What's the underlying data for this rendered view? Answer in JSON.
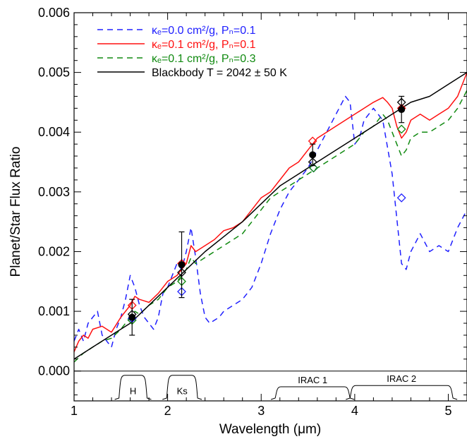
{
  "chart_data": {
    "type": "line",
    "xlabel": "Wavelength (μm)",
    "ylabel": "Planet/Star Flux Ratio",
    "xlim": [
      1.0,
      5.2
    ],
    "ylim": [
      -0.0005,
      0.006
    ],
    "x_ticks": [
      1,
      2,
      3,
      4,
      5
    ],
    "x_tick_labels": [
      "1",
      "2",
      "3",
      "4",
      "5"
    ],
    "y_ticks": [
      0.0,
      0.001,
      0.002,
      0.003,
      0.004,
      0.005,
      0.006
    ],
    "y_tick_labels": [
      "0.000",
      "0.001",
      "0.002",
      "0.003",
      "0.004",
      "0.005",
      "0.006"
    ],
    "grid": false,
    "legend_position": "top-left",
    "series": [
      {
        "name": "κₑ=0.0 cm²/g, Pₙ=0.1",
        "color": "#2020ff",
        "style": "dashed",
        "x": [
          1.0,
          1.05,
          1.1,
          1.15,
          1.2,
          1.25,
          1.3,
          1.35,
          1.4,
          1.45,
          1.5,
          1.55,
          1.6,
          1.65,
          1.7,
          1.75,
          1.8,
          1.85,
          1.9,
          1.95,
          2.0,
          2.05,
          2.1,
          2.15,
          2.2,
          2.25,
          2.3,
          2.35,
          2.4,
          2.45,
          2.5,
          2.55,
          2.6,
          2.7,
          2.8,
          2.9,
          3.0,
          3.1,
          3.2,
          3.3,
          3.4,
          3.5,
          3.6,
          3.7,
          3.8,
          3.9,
          3.95,
          4.0,
          4.05,
          4.1,
          4.2,
          4.3,
          4.4,
          4.5,
          4.55,
          4.6,
          4.7,
          4.8,
          4.9,
          5.0,
          5.1,
          5.2
        ],
        "y": [
          0.0005,
          0.0007,
          0.0005,
          0.0008,
          0.0009,
          0.001,
          0.0006,
          0.0005,
          0.0004,
          0.0007,
          0.0009,
          0.0012,
          0.0016,
          0.0014,
          0.0011,
          0.0009,
          0.0008,
          0.0007,
          0.0009,
          0.0013,
          0.0014,
          0.0016,
          0.0018,
          0.0017,
          0.002,
          0.0024,
          0.0019,
          0.0013,
          0.0009,
          0.0008,
          0.00085,
          0.0009,
          0.001,
          0.0011,
          0.0012,
          0.0014,
          0.0018,
          0.0023,
          0.0027,
          0.003,
          0.0032,
          0.0034,
          0.0037,
          0.004,
          0.0043,
          0.0046,
          0.0045,
          0.0038,
          0.0039,
          0.0042,
          0.0044,
          0.0042,
          0.0033,
          0.0018,
          0.0017,
          0.002,
          0.0023,
          0.002,
          0.0021,
          0.002,
          0.0024,
          0.0027
        ]
      },
      {
        "name": "κₑ=0.1 cm²/g, Pₙ=0.1",
        "color": "#ff1010",
        "style": "solid",
        "x": [
          1.0,
          1.05,
          1.1,
          1.15,
          1.2,
          1.3,
          1.4,
          1.5,
          1.6,
          1.65,
          1.7,
          1.8,
          1.9,
          2.0,
          2.1,
          2.2,
          2.25,
          2.3,
          2.4,
          2.5,
          2.6,
          2.7,
          2.8,
          2.9,
          3.0,
          3.1,
          3.2,
          3.3,
          3.4,
          3.5,
          3.6,
          3.7,
          3.8,
          3.9,
          4.0,
          4.1,
          4.2,
          4.3,
          4.35,
          4.4,
          4.45,
          4.5,
          4.55,
          4.6,
          4.7,
          4.8,
          4.9,
          5.0,
          5.1,
          5.2
        ],
        "y": [
          0.00032,
          0.0005,
          0.0006,
          0.00055,
          0.0007,
          0.00075,
          0.00065,
          0.0009,
          0.0011,
          0.00125,
          0.0012,
          0.00115,
          0.0013,
          0.0015,
          0.0016,
          0.0018,
          0.0021,
          0.002,
          0.0021,
          0.0022,
          0.00235,
          0.0024,
          0.0025,
          0.0027,
          0.0029,
          0.003,
          0.0032,
          0.0034,
          0.0035,
          0.0037,
          0.0039,
          0.004,
          0.0041,
          0.0042,
          0.0043,
          0.0044,
          0.0045,
          0.00458,
          0.0045,
          0.0044,
          0.0041,
          0.0039,
          0.004,
          0.0042,
          0.0043,
          0.0042,
          0.0043,
          0.0044,
          0.0046,
          0.005
        ]
      },
      {
        "name": "κₑ=0.1 cm²/g, Pₙ=0.3",
        "color": "#108a10",
        "style": "dashed",
        "x": [
          1.0,
          1.1,
          1.2,
          1.3,
          1.4,
          1.5,
          1.6,
          1.65,
          1.7,
          1.8,
          1.9,
          2.0,
          2.1,
          2.2,
          2.25,
          2.3,
          2.4,
          2.5,
          2.6,
          2.7,
          2.8,
          2.9,
          3.0,
          3.1,
          3.2,
          3.3,
          3.4,
          3.5,
          3.6,
          3.7,
          3.8,
          3.9,
          4.0,
          4.1,
          4.2,
          4.3,
          4.35,
          4.4,
          4.45,
          4.5,
          4.55,
          4.6,
          4.7,
          4.8,
          4.9,
          5.0,
          5.1,
          5.2
        ],
        "y": [
          0.00015,
          0.0003,
          0.0004,
          0.0005,
          0.00055,
          0.0007,
          0.0009,
          0.001,
          0.00095,
          0.0011,
          0.0012,
          0.0014,
          0.0015,
          0.0017,
          0.0019,
          0.0018,
          0.0019,
          0.002,
          0.0021,
          0.0022,
          0.0023,
          0.0025,
          0.0027,
          0.0029,
          0.003,
          0.0031,
          0.0032,
          0.0033,
          0.0034,
          0.0035,
          0.0036,
          0.0037,
          0.0038,
          0.004,
          0.0041,
          0.0043,
          0.0042,
          0.004,
          0.0038,
          0.0036,
          0.0037,
          0.0039,
          0.004,
          0.004,
          0.0041,
          0.0042,
          0.0044,
          0.0047
        ]
      },
      {
        "name": "Blackbody T = 2042 ± 50 K",
        "color": "#000000",
        "style": "solid",
        "x": [
          1.0,
          1.2,
          1.4,
          1.6,
          1.8,
          2.0,
          2.2,
          2.4,
          2.6,
          2.8,
          3.0,
          3.2,
          3.4,
          3.6,
          3.8,
          4.0,
          4.2,
          4.4,
          4.6,
          4.8,
          5.0,
          5.2
        ],
        "y": [
          0.0002,
          0.0004,
          0.0006,
          0.0008,
          0.0011,
          0.0014,
          0.0017,
          0.002,
          0.00225,
          0.0025,
          0.0028,
          0.0031,
          0.0033,
          0.0035,
          0.0037,
          0.0039,
          0.0041,
          0.0043,
          0.0045,
          0.0046,
          0.0048,
          0.005
        ]
      }
    ],
    "observations": {
      "x": [
        1.62,
        2.15,
        3.55,
        4.5
      ],
      "y": [
        0.0009,
        0.00178,
        0.00362,
        0.00438
      ],
      "yerr": [
        0.0003,
        0.00055,
        0.00018,
        0.00022
      ]
    },
    "band_averaged": [
      {
        "series": 0,
        "color": "#2020ff",
        "x": [
          1.62,
          2.15,
          3.56,
          4.5
        ],
        "y": [
          0.00088,
          0.00133,
          0.0034,
          0.0029
        ]
      },
      {
        "series": 1,
        "color": "#ff1010",
        "x": [
          1.62,
          2.15,
          3.55,
          4.5
        ],
        "y": [
          0.0011,
          0.0018,
          0.00385,
          0.0044
        ]
      },
      {
        "series": 2,
        "color": "#108a10",
        "x": [
          1.62,
          2.15,
          3.56,
          4.5
        ],
        "y": [
          0.00085,
          0.0015,
          0.0034,
          0.00405
        ]
      },
      {
        "series": 3,
        "color": "#000000",
        "x": [
          1.62,
          2.15,
          3.55,
          4.5
        ],
        "y": [
          0.00095,
          0.00165,
          0.0035,
          0.0045
        ]
      }
    ],
    "filters": [
      {
        "label": "H",
        "x_start": 1.48,
        "x_end": 1.78,
        "height": 1.0
      },
      {
        "label": "Ks",
        "x_start": 1.99,
        "x_end": 2.32,
        "height": 1.0
      },
      {
        "label": "IRAC 1",
        "x_start": 3.15,
        "x_end": 3.95,
        "height": 0.55
      },
      {
        "label": "IRAC 2",
        "x_start": 3.95,
        "x_end": 5.05,
        "height": 0.6
      }
    ]
  }
}
